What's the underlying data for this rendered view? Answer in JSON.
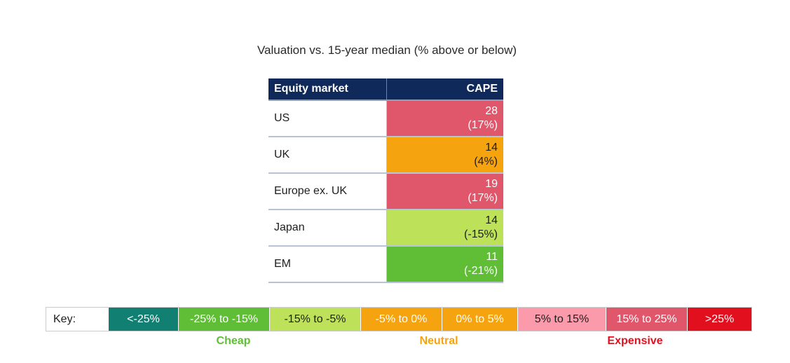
{
  "title": "Valuation vs. 15-year median (% above or below)",
  "chart_data": {
    "type": "table",
    "columns": [
      "Equity market",
      "CAPE"
    ],
    "rows": [
      {
        "market": "US",
        "cape": "28",
        "vs_median": "(17%)",
        "band": "15% to 25%",
        "color": "#e0566b",
        "text_color": "#ffffff"
      },
      {
        "market": "UK",
        "cape": "14",
        "vs_median": "(4%)",
        "band": "0% to 5%",
        "color": "#f5a30f",
        "text_color": "#1e1e1e"
      },
      {
        "market": "Europe ex. UK",
        "cape": "19",
        "vs_median": "(17%)",
        "band": "15% to 25%",
        "color": "#e0566b",
        "text_color": "#ffffff"
      },
      {
        "market": "Japan",
        "cape": "14",
        "vs_median": "(-15%)",
        "band": "-15% to -5%",
        "color": "#bde25a",
        "text_color": "#1e1e1e"
      },
      {
        "market": "EM",
        "cape": "11",
        "vs_median": "(-21%)",
        "band": "-25% to -15%",
        "color": "#5fbe36",
        "text_color": "#ffffff"
      }
    ]
  },
  "key": {
    "label": "Key:",
    "items": [
      {
        "label": "<-25%",
        "color": "#127f73",
        "text_color": "#ffffff"
      },
      {
        "label": "-25% to -15%",
        "color": "#5fbe36",
        "text_color": "#ffffff"
      },
      {
        "label": "-15% to -5%",
        "color": "#bde25a",
        "text_color": "#1e1e1e"
      },
      {
        "label": "-5% to 0%",
        "color": "#f5a30f",
        "text_color": "#ffffff"
      },
      {
        "label": "0% to 5%",
        "color": "#f5a30f",
        "text_color": "#ffffff"
      },
      {
        "label": "5% to 15%",
        "color": "#fb9aaa",
        "text_color": "#1e1e1e"
      },
      {
        "label": "15% to 25%",
        "color": "#e0566b",
        "text_color": "#ffffff"
      },
      {
        "label": ">25%",
        "color": "#e2101e",
        "text_color": "#ffffff"
      }
    ],
    "groups": [
      {
        "label": "Cheap",
        "color": "#5fbe36"
      },
      {
        "label": "Neutral",
        "color": "#f5a30f"
      },
      {
        "label": "Expensive",
        "color": "#e2101e"
      }
    ]
  }
}
